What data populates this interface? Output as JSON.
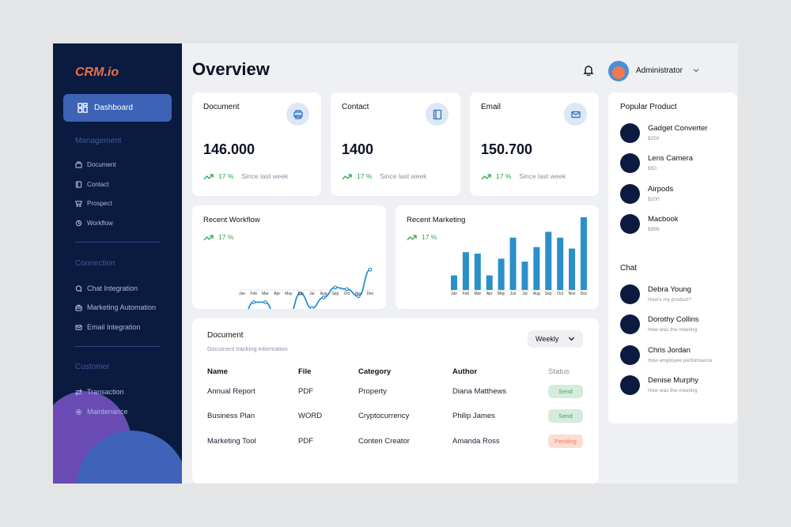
{
  "brand": {
    "logo": "CRM.io"
  },
  "sidebar": {
    "dashboard_label": "Dashboard",
    "sections": [
      {
        "title": "Management",
        "items": [
          {
            "label": "Document",
            "icon": "document-icon"
          },
          {
            "label": "Contact",
            "icon": "contact-book-icon"
          },
          {
            "label": "Prospect",
            "icon": "cart-icon"
          },
          {
            "label": "Workflow",
            "icon": "workflow-icon"
          }
        ]
      },
      {
        "title": "Connection",
        "items": [
          {
            "label": "Chat Integration",
            "icon": "chat-icon"
          },
          {
            "label": "Marketing Automation",
            "icon": "briefcase-icon"
          },
          {
            "label": "Email Integration",
            "icon": "mail-icon"
          }
        ]
      },
      {
        "title": "Customer",
        "items": [
          {
            "label": "Transaction",
            "icon": "exchange-icon"
          },
          {
            "label": "Maintenance",
            "icon": "gear-icon"
          }
        ]
      }
    ]
  },
  "header": {
    "title": "Overview",
    "user_name": "Administrator"
  },
  "stats": [
    {
      "label": "Document",
      "value": "146.000",
      "change": "17 %",
      "since": "Since last week",
      "icon": "printer-icon"
    },
    {
      "label": "Contact",
      "value": "1400",
      "change": "17 %",
      "since": "Since last week",
      "icon": "book-icon"
    },
    {
      "label": "Email",
      "value": "150.700",
      "change": "17 %",
      "since": "Since last week",
      "icon": "mail-icon"
    }
  ],
  "charts": {
    "workflow": {
      "title": "Recent Workflow",
      "change": "17 %"
    },
    "marketing": {
      "title": "Recent Marketing",
      "change": "17 %"
    }
  },
  "chart_data": [
    {
      "type": "line",
      "title": "Recent Workflow",
      "categories": [
        "Jan",
        "Feb",
        "Mar",
        "Apr",
        "May",
        "Jun",
        "Jul",
        "Aug",
        "Sep",
        "Oct",
        "Nov",
        "Dec"
      ],
      "values": [
        2,
        30,
        30,
        0,
        5,
        45,
        20,
        38,
        55,
        52,
        40,
        85
      ],
      "ylim": [
        0,
        100
      ],
      "color": "#2b90c8"
    },
    {
      "type": "bar",
      "title": "Recent Marketing",
      "categories": [
        "Jan",
        "Feb",
        "Mar",
        "Apr",
        "May",
        "Jun",
        "Jul",
        "Aug",
        "Sep",
        "Oct",
        "Nov",
        "Dec"
      ],
      "series": [
        {
          "values": [
            20,
            52,
            50,
            20,
            43,
            72,
            39,
            59,
            80,
            72,
            57,
            100
          ]
        }
      ],
      "ylim": [
        0,
        100
      ],
      "color": "#2b90c8"
    }
  ],
  "document_table": {
    "title": "Document",
    "subtitle": "Document tracking information",
    "filter": "Weekly",
    "headers": [
      "Name",
      "File",
      "Category",
      "Author",
      "Status"
    ],
    "rows": [
      {
        "name": "Annual Report",
        "file": "PDF",
        "category": "Property",
        "author": "Diana Matthews",
        "status": "Send"
      },
      {
        "name": "Business Plan",
        "file": "WORD",
        "category": "Cryptocurrency",
        "author": "Philip James",
        "status": "Send"
      },
      {
        "name": "Marketing Tool",
        "file": "PDF",
        "category": "Conten Creator",
        "author": "Amanda Ross",
        "status": "Pending"
      }
    ]
  },
  "popular_products": {
    "title": "Popular Product",
    "items": [
      {
        "name": "Gadget Converter",
        "price": "$250"
      },
      {
        "name": "Lens Camera",
        "price": "$50"
      },
      {
        "name": "Airpods",
        "price": "$100"
      },
      {
        "name": "Macbook",
        "price": "$999"
      }
    ]
  },
  "chat": {
    "title": "Chat",
    "items": [
      {
        "name": "Debra Young",
        "message": "How's my product?"
      },
      {
        "name": "Dorothy Collins",
        "message": "How was the meeting"
      },
      {
        "name": "Chris Jordan",
        "message": "How employee performance"
      },
      {
        "name": "Denise Murphy",
        "message": "How was the meeting"
      }
    ]
  },
  "colors": {
    "sidebar": "#0b1a3f",
    "accent": "#3d63b6",
    "logo": "#f06e45",
    "chart": "#2b90c8",
    "positive": "#2aa64b",
    "pending": "#ef7d58"
  }
}
